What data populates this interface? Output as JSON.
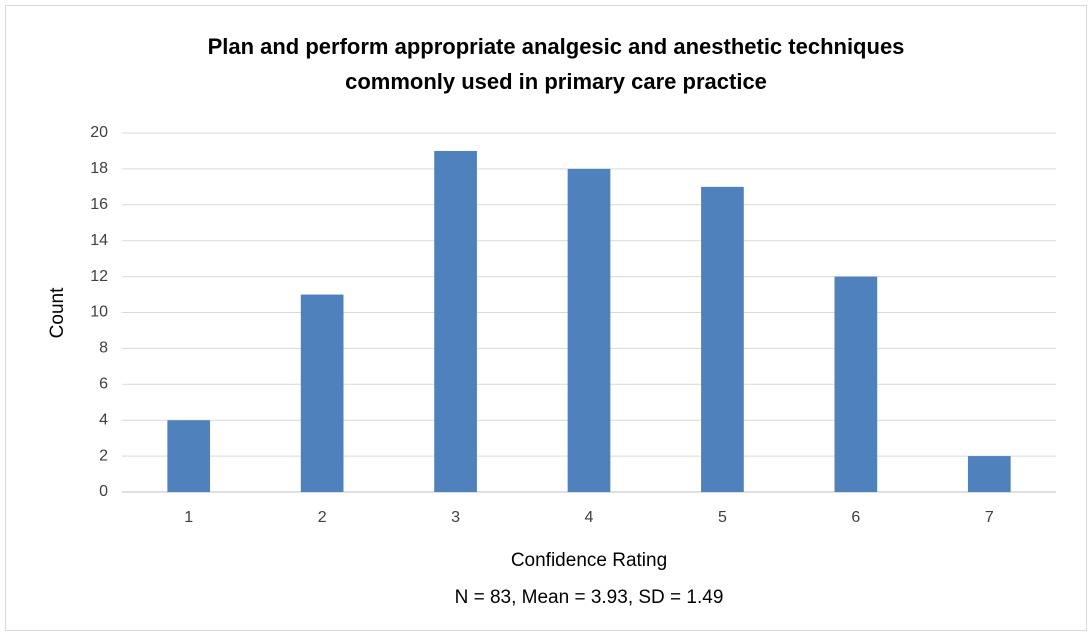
{
  "chart_data": {
    "type": "bar",
    "title": [
      "Plan and perform appropriate analgesic and anesthetic techniques",
      "commonly used in primary care practice"
    ],
    "x_label": "Confidence Rating",
    "y_label": "Count",
    "note": "N = 83, Mean = 3.93, SD = 1.49",
    "categories": [
      "1",
      "2",
      "3",
      "4",
      "5",
      "6",
      "7"
    ],
    "values": [
      4,
      11,
      19,
      18,
      17,
      12,
      2
    ],
    "color": "#4f81bd",
    "ylim": [
      0,
      20
    ],
    "yticks": [
      0,
      2,
      4,
      6,
      8,
      10,
      12,
      14,
      16,
      18,
      20
    ],
    "grid": true
  }
}
